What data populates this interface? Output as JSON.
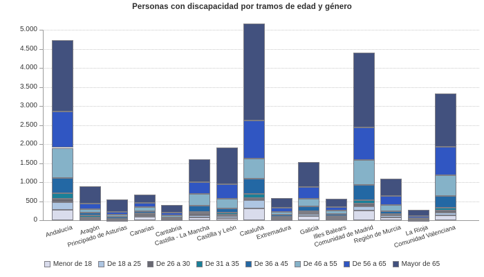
{
  "title": "Personas con discapacidad por tramos de edad y género",
  "legend": {
    "position": "bottom",
    "items": [
      "Menor de 18",
      "De 18 a 25",
      "De 26 a 30",
      "De 31 a 35",
      "De 36 a 45",
      "De 46 a 55",
      "De 56 a 65",
      "Mayor de 65"
    ]
  },
  "colors": {
    "menor_de_18": "#d9dcec",
    "de_18_a_25": "#aec6e2",
    "de_26_a_30": "#696972",
    "de_31_a_35": "#1a8098",
    "de_36_a_45": "#2368a4",
    "de_46_a_55": "#85b2c8",
    "de_56_a_65": "#3056c2",
    "mayor_de_65": "#42517e",
    "grid": "#c9c9c9",
    "axis": "#9a9a9a",
    "segment_border": "#7d7d85",
    "text": "#333333"
  },
  "chart_data": {
    "type": "bar",
    "stacked": true,
    "title": "Personas con discapacidad por tramos de edad y género",
    "xlabel": "",
    "ylabel": "",
    "ylim": [
      0,
      5300
    ],
    "grid": "horizontal-dotted",
    "legend_position": "bottom",
    "ytick_values": [
      0,
      500,
      1000,
      1500,
      2000,
      2500,
      3000,
      3500,
      4000,
      4500,
      5000
    ],
    "ytick_labels": [
      "0",
      "500",
      "1.000",
      "1.500",
      "2.000",
      "2.500",
      "3.000",
      "3.500",
      "4.000",
      "4.500",
      "5.000"
    ],
    "categories": [
      "Andalucía",
      "Aragón",
      "Principado de Asturias",
      "Canarias",
      "Cantabria",
      "Castilla - La Mancha",
      "Castilla y León",
      "Cataluña",
      "Extremadura",
      "Galicia",
      "Illes Balears",
      "Comunidad de Madrid",
      "Región de Murcia",
      "La Rioja",
      "Comunidad Valenciana"
    ],
    "series": [
      {
        "name": "Menor de 18",
        "color": "#d9dcec",
        "values": [
          280,
          10,
          8,
          100,
          12,
          65,
          55,
          315,
          25,
          105,
          30,
          250,
          65,
          8,
          135
        ]
      },
      {
        "name": "De 18 a 25",
        "color": "#aec6e2",
        "values": [
          195,
          25,
          8,
          15,
          12,
          65,
          55,
          205,
          20,
          55,
          35,
          120,
          55,
          5,
          70
        ]
      },
      {
        "name": "De 26 a 30",
        "color": "#696972",
        "values": [
          95,
          45,
          15,
          45,
          15,
          45,
          35,
          60,
          20,
          35,
          25,
          60,
          20,
          6,
          50
        ]
      },
      {
        "name": "De 31 a 35",
        "color": "#1a8098",
        "values": [
          145,
          40,
          12,
          15,
          12,
          40,
          50,
          110,
          20,
          40,
          25,
          95,
          15,
          5,
          75
        ]
      },
      {
        "name": "De 36 a 45",
        "color": "#2368a4",
        "values": [
          395,
          80,
          40,
          70,
          30,
          170,
          115,
          395,
          60,
          135,
          50,
          395,
          80,
          12,
          305
        ]
      },
      {
        "name": "De 46 a 55",
        "color": "#85b2c8",
        "values": [
          790,
          90,
          55,
          95,
          50,
          305,
          260,
          535,
          75,
          200,
          85,
          665,
          165,
          20,
          545
        ]
      },
      {
        "name": "De 56 a 65",
        "color": "#3056c2",
        "values": [
          960,
          155,
          85,
          120,
          72,
          315,
          380,
          1000,
          110,
          305,
          95,
          855,
          240,
          60,
          745
        ]
      },
      {
        "name": "Mayor de 65",
        "color": "#42517e",
        "values": [
          1870,
          440,
          320,
          210,
          200,
          595,
          960,
          2545,
          260,
          655,
          225,
          1965,
          460,
          165,
          1405
        ]
      }
    ],
    "totals": [
      4730,
      885,
      543,
      670,
      403,
      1600,
      1910,
      5165,
      590,
      1530,
      570,
      4405,
      1100,
      281,
      3330
    ]
  }
}
